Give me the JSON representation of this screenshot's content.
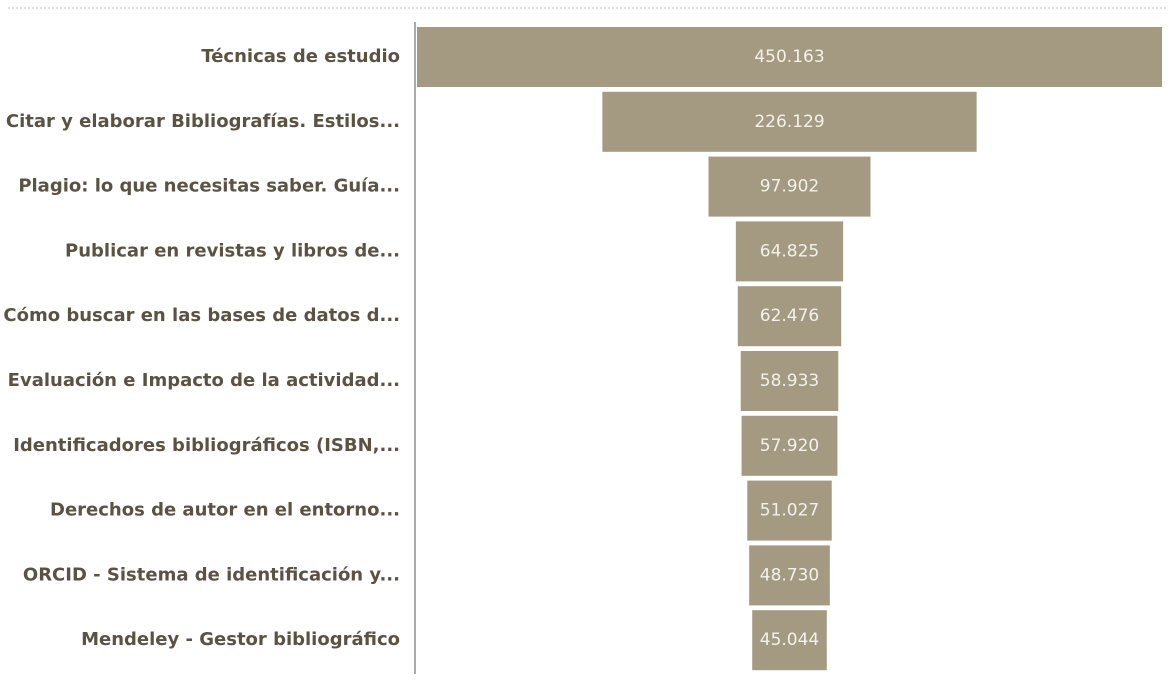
{
  "chart_data": {
    "type": "funnel",
    "categories": [
      "Técnicas de estudio",
      "Citar y elaborar Bibliografías. Estilos...",
      "Plagio: lo que necesitas saber. Guía...",
      "Publicar en revistas y libros de...",
      "Cómo buscar en las bases de datos d...",
      "Evaluación e Impacto de la actividad...",
      "Identificadores bibliográficos (ISBN,...",
      "Derechos de autor en el entorno...",
      "ORCID - Sistema de identificación y...",
      "Mendeley - Gestor bibliográfico"
    ],
    "values": [
      450163,
      226129,
      97902,
      64825,
      62476,
      58933,
      57920,
      51027,
      48730,
      45044
    ],
    "value_labels": [
      "450.163",
      "226.129",
      "97.902",
      "64.825",
      "62.476",
      "58.933",
      "57.920",
      "51.027",
      "48.730",
      "45.044"
    ],
    "color": "#a39a81"
  }
}
